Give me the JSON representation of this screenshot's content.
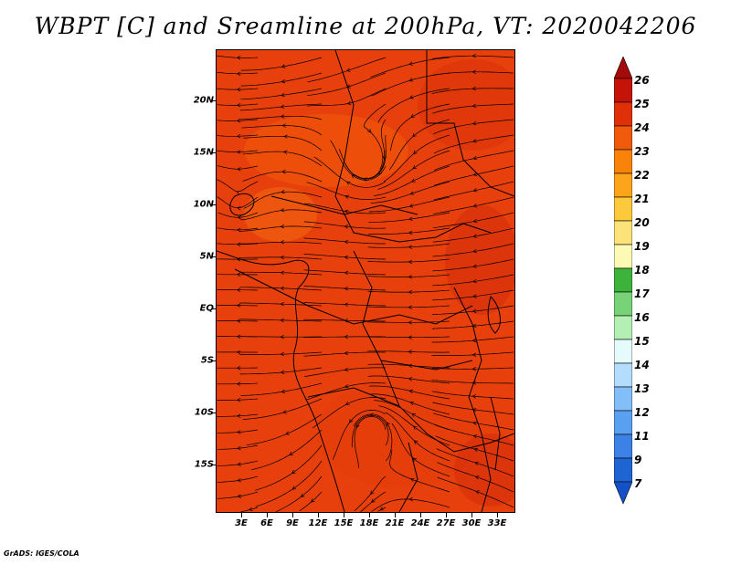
{
  "title": "WBPT [C] and Sreamline at 200hPa, VT: 2020042206",
  "credit": "GrADS: IGES/COLA",
  "map": {
    "field": "WBPT [C]",
    "level": "200hPa",
    "valid_time": "2020042206",
    "dominant_color": "#e8400c",
    "lat_labels": [
      "20N",
      "15N",
      "10N",
      "5N",
      "EQ",
      "5S",
      "10S",
      "15S"
    ],
    "lat_values": [
      20,
      15,
      10,
      5,
      0,
      -5,
      -10,
      -15
    ],
    "lon_labels": [
      "3E",
      "6E",
      "9E",
      "12E",
      "15E",
      "18E",
      "21E",
      "24E",
      "27E",
      "30E",
      "33E"
    ],
    "lon_values": [
      3,
      6,
      9,
      12,
      15,
      18,
      21,
      24,
      27,
      30,
      33
    ]
  },
  "colorbar": {
    "labels": [
      "26",
      "25",
      "24",
      "23",
      "22",
      "21",
      "20",
      "19",
      "18",
      "17",
      "16",
      "15",
      "14",
      "13",
      "12",
      "11",
      "9",
      "7"
    ],
    "colors": [
      "#a50a0a",
      "#c4140a",
      "#e0300a",
      "#f05a0a",
      "#f8820a",
      "#fca41a",
      "#fcc83c",
      "#fce278",
      "#fcfab4",
      "#3cb43c",
      "#78d278",
      "#b4f0b4",
      "#e6fcfc",
      "#b4dcfc",
      "#82bef8",
      "#5aa0f0",
      "#3c82e6",
      "#1e64d2",
      "#1450c8"
    ]
  }
}
